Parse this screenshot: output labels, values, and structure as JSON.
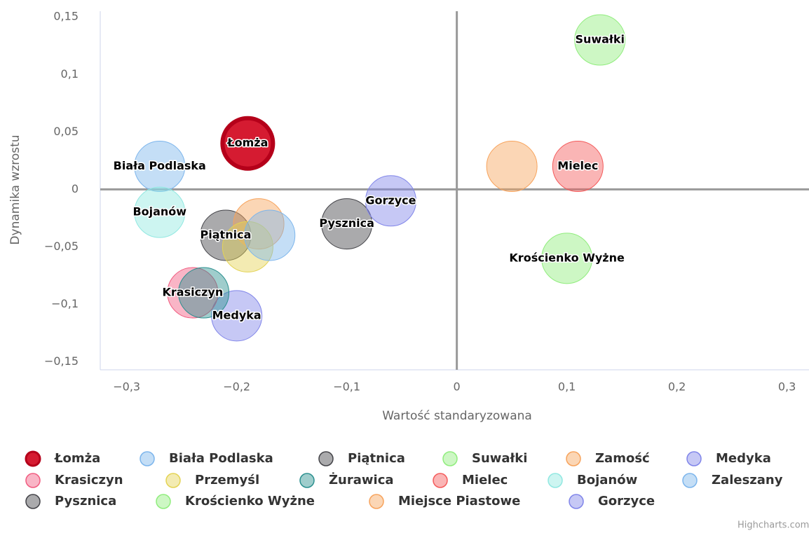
{
  "chart_data": {
    "type": "bubble",
    "x_axis_label": "Wartość standaryzowana",
    "y_axis_label": "Dynamika wzrostu",
    "credits": "Highcharts.com",
    "xlim": [
      -0.324,
      0.32
    ],
    "ylim": [
      -0.157,
      0.155
    ],
    "xticks": [
      {
        "value": -0.3,
        "label": "−0,3"
      },
      {
        "value": -0.2,
        "label": "−0,2"
      },
      {
        "value": -0.1,
        "label": "−0,1"
      },
      0,
      {
        "value": 0.1,
        "label": "0,1"
      },
      {
        "value": 0.2,
        "label": "0,2"
      },
      {
        "value": 0.3,
        "label": "0,3"
      }
    ],
    "yticks": [
      {
        "value": 0.15,
        "label": "0,15"
      },
      {
        "value": 0.1,
        "label": "0,1"
      },
      {
        "value": 0.05,
        "label": "0,05"
      },
      0,
      {
        "value": -0.05,
        "label": "−0,05"
      },
      {
        "value": -0.1,
        "label": "−0,1"
      },
      {
        "value": -0.15,
        "label": "−0,15"
      }
    ],
    "series": [
      {
        "name": "Łomża",
        "color": "#d0021b",
        "selected": true,
        "show_label": true,
        "x": [
          -0.19
        ],
        "values": [
          0.04
        ]
      },
      {
        "name": "Biała Podlaska",
        "color": "#7cb5ec",
        "show_label": true,
        "x": [
          -0.27
        ],
        "values": [
          0.02
        ]
      },
      {
        "name": "Piątnica",
        "color": "#434348",
        "show_label": true,
        "x": [
          -0.21
        ],
        "values": [
          -0.04
        ]
      },
      {
        "name": "Suwałki",
        "color": "#90ed7d",
        "show_label": true,
        "x": [
          0.13
        ],
        "values": [
          0.13
        ]
      },
      {
        "name": "Zamość",
        "color": "#f7a35c",
        "show_label": false,
        "x": [
          -0.18
        ],
        "values": [
          -0.03
        ]
      },
      {
        "name": "Medyka",
        "color": "#8085e9",
        "show_label": true,
        "x": [
          -0.2
        ],
        "values": [
          -0.11
        ]
      },
      {
        "name": "Krasiczyn",
        "color": "#f15c80",
        "show_label": true,
        "x": [
          -0.24
        ],
        "values": [
          -0.09
        ]
      },
      {
        "name": "Przemyśl",
        "color": "#e4d354",
        "show_label": false,
        "x": [
          -0.19
        ],
        "values": [
          -0.05
        ]
      },
      {
        "name": "Żurawica",
        "color": "#2b908f",
        "show_label": false,
        "x": [
          -0.23
        ],
        "values": [
          -0.09
        ]
      },
      {
        "name": "Mielec",
        "color": "#f45b5b",
        "show_label": true,
        "x": [
          0.11
        ],
        "values": [
          0.02
        ]
      },
      {
        "name": "Bojanów",
        "color": "#91e8e1",
        "show_label": true,
        "x": [
          -0.27
        ],
        "values": [
          -0.02
        ]
      },
      {
        "name": "Zaleszany",
        "color": "#7cb5ec",
        "show_label": false,
        "x": [
          -0.17
        ],
        "values": [
          -0.04
        ]
      },
      {
        "name": "Pysznica",
        "color": "#434348",
        "show_label": true,
        "x": [
          -0.1
        ],
        "values": [
          -0.03
        ]
      },
      {
        "name": "Krościenko Wyżne",
        "color": "#90ed7d",
        "show_label": true,
        "x": [
          0.1
        ],
        "values": [
          -0.06
        ]
      },
      {
        "name": "Miejsce Piastowe",
        "color": "#f7a35c",
        "show_label": false,
        "x": [
          0.05
        ],
        "values": [
          0.02
        ]
      },
      {
        "name": "Gorzyce",
        "color": "#8085e9",
        "show_label": true,
        "x": [
          -0.06
        ],
        "values": [
          -0.01
        ]
      }
    ]
  }
}
